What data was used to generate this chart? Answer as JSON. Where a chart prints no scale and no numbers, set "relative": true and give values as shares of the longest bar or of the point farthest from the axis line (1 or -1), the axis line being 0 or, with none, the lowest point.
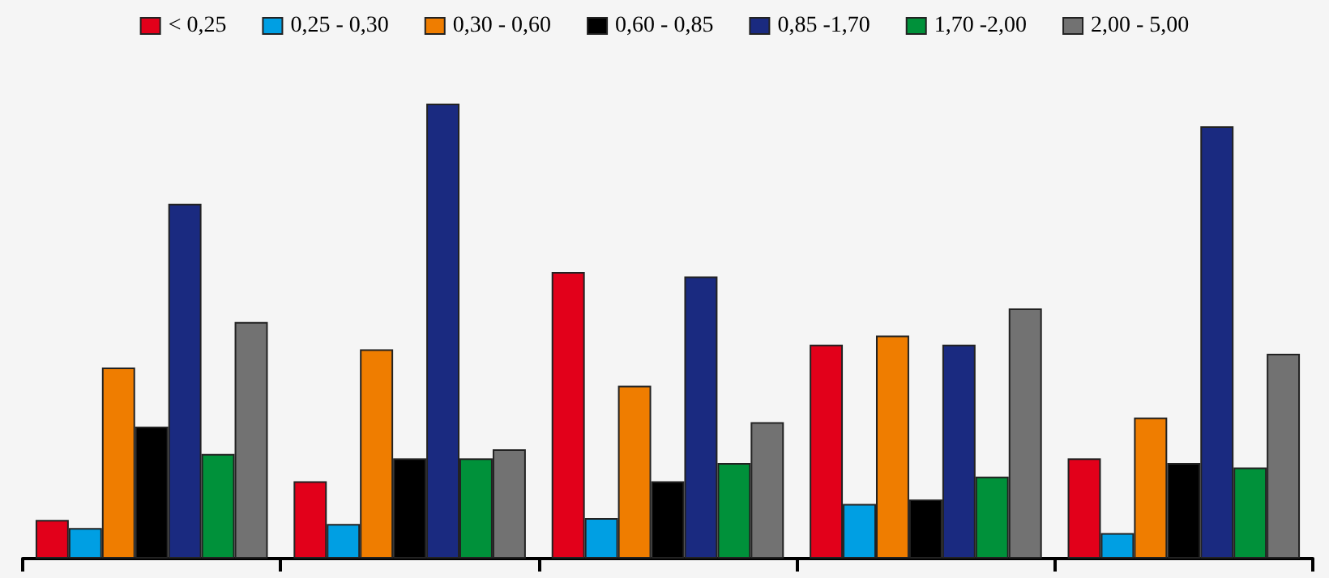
{
  "chart_data": {
    "type": "bar",
    "relative": true,
    "legend": "top",
    "categories": [
      null,
      null,
      null,
      null,
      null
    ],
    "series": [
      {
        "name": "< 0,25",
        "color": "#e2001a",
        "values": [
          0.085,
          0.17,
          0.63,
          0.47,
          0.22
        ]
      },
      {
        "name": "0,25 - 0,30",
        "color": "#009fe3",
        "values": [
          0.067,
          0.076,
          0.089,
          0.12,
          0.056
        ]
      },
      {
        "name": "0,30 - 0,60",
        "color": "#ef7d00",
        "values": [
          0.42,
          0.46,
          0.38,
          0.49,
          0.31
        ]
      },
      {
        "name": "0,60 - 0,85",
        "color": "#000000",
        "values": [
          0.29,
          0.22,
          0.17,
          0.13,
          0.21
        ]
      },
      {
        "name": "0,85 -1,70",
        "color": "#1a2a80",
        "values": [
          0.78,
          1,
          0.62,
          0.47,
          0.95
        ]
      },
      {
        "name": "1,70 -2,00",
        "color": "#00913a",
        "values": [
          0.23,
          0.22,
          0.21,
          0.18,
          0.2
        ]
      },
      {
        "name": "2,00 - 5,00",
        "color": "#727272",
        "values": [
          0.52,
          0.24,
          0.3,
          0.55,
          0.45
        ]
      }
    ]
  }
}
